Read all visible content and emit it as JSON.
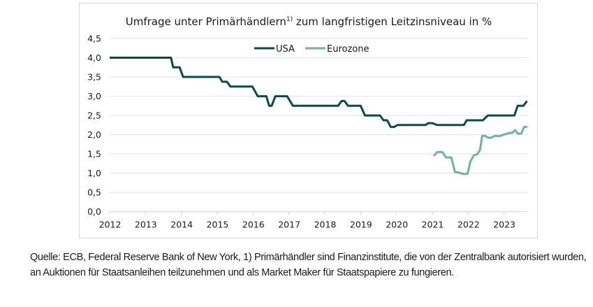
{
  "chart_data": {
    "type": "line",
    "title": "Umfrage unter Primärhändlern",
    "title_superscript": "1)",
    "title_suffix": " zum langfristigen Leitzinsniveau in %",
    "xlabel": "",
    "ylabel": "",
    "xlim": [
      2012,
      2023.67
    ],
    "ylim": [
      0,
      4.5
    ],
    "x_ticks": [
      2012,
      2013,
      2014,
      2015,
      2016,
      2017,
      2018,
      2019,
      2020,
      2021,
      2022,
      2023
    ],
    "x_tick_labels": [
      "2012",
      "2013",
      "2014",
      "2015",
      "2016",
      "2017",
      "2018",
      "2019",
      "2020",
      "2021",
      "2022",
      "2023"
    ],
    "y_ticks": [
      0,
      0.5,
      1.0,
      1.5,
      2.0,
      2.5,
      3.0,
      3.5,
      4.0,
      4.5
    ],
    "y_tick_labels": [
      "0,0",
      "0,5",
      "1,0",
      "1,5",
      "2,0",
      "2,5",
      "3,0",
      "3,5",
      "4,0",
      "4,5"
    ],
    "grid": "horizontal",
    "legend_position": "top-center",
    "series": [
      {
        "name": "USA",
        "color": "#0b4a48",
        "points": [
          [
            2012.0,
            4.0
          ],
          [
            2013.71,
            4.0
          ],
          [
            2013.77,
            3.75
          ],
          [
            2013.95,
            3.75
          ],
          [
            2014.05,
            3.5
          ],
          [
            2015.06,
            3.5
          ],
          [
            2015.14,
            3.375
          ],
          [
            2015.27,
            3.375
          ],
          [
            2015.37,
            3.25
          ],
          [
            2015.98,
            3.25
          ],
          [
            2016.13,
            3.0
          ],
          [
            2016.37,
            3.0
          ],
          [
            2016.45,
            2.75
          ],
          [
            2016.52,
            2.75
          ],
          [
            2016.62,
            3.0
          ],
          [
            2016.95,
            3.0
          ],
          [
            2017.11,
            2.75
          ],
          [
            2018.37,
            2.75
          ],
          [
            2018.47,
            2.875
          ],
          [
            2018.55,
            2.875
          ],
          [
            2018.65,
            2.75
          ],
          [
            2019.0,
            2.75
          ],
          [
            2019.12,
            2.5
          ],
          [
            2019.54,
            2.5
          ],
          [
            2019.64,
            2.375
          ],
          [
            2019.74,
            2.375
          ],
          [
            2019.84,
            2.2
          ],
          [
            2019.93,
            2.2
          ],
          [
            2020.03,
            2.25
          ],
          [
            2020.81,
            2.25
          ],
          [
            2020.89,
            2.3
          ],
          [
            2021.0,
            2.3
          ],
          [
            2021.14,
            2.25
          ],
          [
            2021.88,
            2.25
          ],
          [
            2021.96,
            2.375
          ],
          [
            2022.41,
            2.375
          ],
          [
            2022.55,
            2.5
          ],
          [
            2023.29,
            2.5
          ],
          [
            2023.38,
            2.75
          ],
          [
            2023.54,
            2.75
          ],
          [
            2023.64,
            2.875
          ]
        ]
      },
      {
        "name": "Eurozone",
        "color": "#6db596",
        "points": [
          [
            2021.04,
            1.45
          ],
          [
            2021.14,
            1.55
          ],
          [
            2021.28,
            1.55
          ],
          [
            2021.38,
            1.41
          ],
          [
            2021.53,
            1.41
          ],
          [
            2021.63,
            1.03
          ],
          [
            2021.77,
            1.01
          ],
          [
            2021.86,
            0.98
          ],
          [
            2021.98,
            0.98
          ],
          [
            2022.06,
            1.3
          ],
          [
            2022.16,
            1.47
          ],
          [
            2022.25,
            1.49
          ],
          [
            2022.33,
            1.6
          ],
          [
            2022.39,
            1.97
          ],
          [
            2022.47,
            1.97
          ],
          [
            2022.57,
            1.92
          ],
          [
            2022.64,
            1.92
          ],
          [
            2022.74,
            1.97
          ],
          [
            2022.86,
            1.96
          ],
          [
            2022.99,
            2.0
          ],
          [
            2023.13,
            2.04
          ],
          [
            2023.23,
            2.05
          ],
          [
            2023.31,
            2.12
          ],
          [
            2023.38,
            2.03
          ],
          [
            2023.48,
            2.03
          ],
          [
            2023.56,
            2.2
          ],
          [
            2023.65,
            2.21
          ]
        ]
      }
    ]
  },
  "source_note": "Quelle: ECB, Federal Reserve Bank of New York, 1) Primärhändler sind Finanzinstitute, die von der Zentralbank autorisiert wurden, an Auktionen für Staatsanleihen teilzunehmen und als Market Maker für Staatspapiere zu fungieren."
}
